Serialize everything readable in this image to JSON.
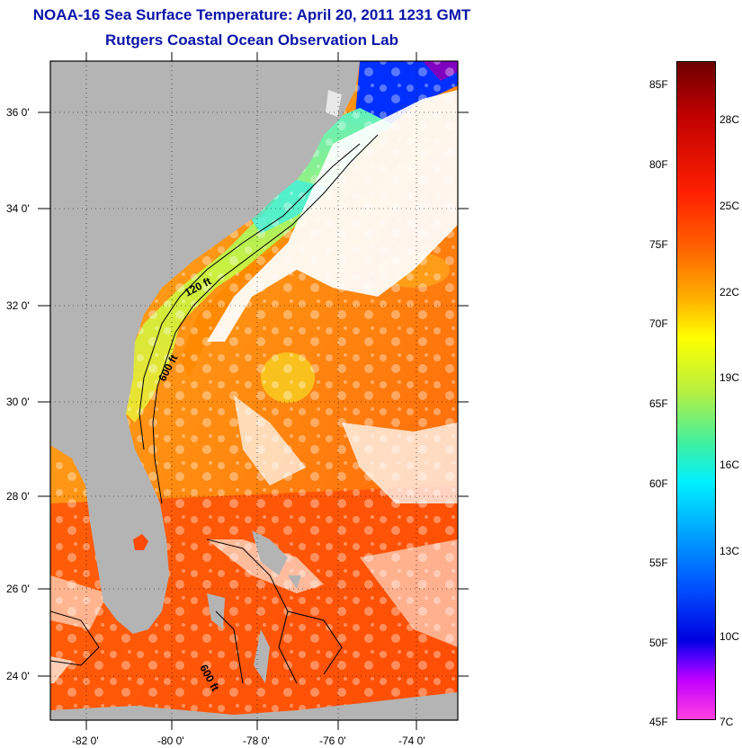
{
  "title": {
    "line1": "NOAA-16 Sea Surface Temperature:  April 20, 2011 1231 GMT",
    "line2": "Rutgers Coastal Ocean Observation Lab"
  },
  "map": {
    "lat_labels": [
      "36 0'",
      "34 0'",
      "32 0'",
      "30 0'",
      "28 0'",
      "26 0'",
      "24 0'"
    ],
    "lon_labels": [
      "-82 0'",
      "-80 0'",
      "-78 0'",
      "-76 0'",
      "-74 0'"
    ],
    "contour_labels": [
      "120 ft",
      "600 ft",
      "600 ft"
    ],
    "colors": {
      "land": "#b4b4b4",
      "cloud": "#ffffff",
      "warm_water": "#ff7a10",
      "shelf_water": "#d8f040",
      "cold_water": "#0030ff"
    }
  },
  "colorbar": {
    "fahrenheit": [
      "85F",
      "80F",
      "75F",
      "70F",
      "65F",
      "60F",
      "55F",
      "50F",
      "45F"
    ],
    "celsius": [
      "28C",
      "25C",
      "22C",
      "19C",
      "16C",
      "13C",
      "10C",
      "7C"
    ]
  }
}
